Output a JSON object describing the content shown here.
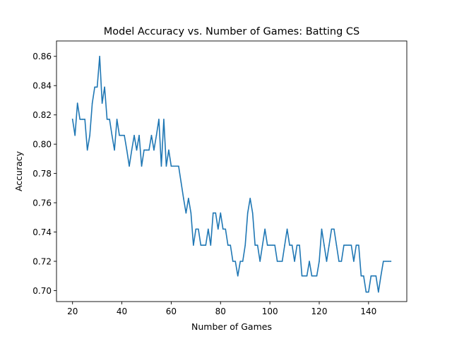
{
  "chart_data": {
    "type": "line",
    "title": "Model Accuracy vs. Number of Games: Batting CS",
    "xlabel": "Number of Games",
    "ylabel": "Accuracy",
    "xlim": [
      13.5,
      155.5
    ],
    "ylim": [
      0.6925,
      0.8705
    ],
    "xticks": [
      20,
      40,
      60,
      80,
      100,
      120,
      140
    ],
    "yticks": [
      0.7,
      0.72,
      0.74,
      0.76,
      0.78,
      0.8,
      0.82,
      0.84,
      0.86
    ],
    "xtick_labels": [
      "20",
      "40",
      "60",
      "80",
      "100",
      "120",
      "140"
    ],
    "ytick_labels": [
      "0.70",
      "0.72",
      "0.74",
      "0.76",
      "0.78",
      "0.80",
      "0.82",
      "0.84",
      "0.86"
    ],
    "grid": false,
    "line_color": "#1f77b4",
    "series": [
      {
        "x": [
          20,
          21,
          22,
          23,
          24,
          25,
          26,
          27,
          28,
          29,
          30,
          31,
          32,
          33,
          34,
          35,
          36,
          37,
          38,
          39,
          40,
          41,
          42,
          43,
          44,
          45,
          46,
          47,
          48,
          49,
          50,
          51,
          52,
          53,
          54,
          55,
          56,
          57,
          58,
          59,
          60,
          61,
          62,
          63,
          64,
          65,
          66,
          67,
          68,
          69,
          70,
          71,
          72,
          73,
          74,
          75,
          76,
          77,
          78,
          79,
          80,
          81,
          82,
          83,
          84,
          85,
          86,
          87,
          88,
          89,
          90,
          91,
          92,
          93,
          94,
          95,
          96,
          97,
          98,
          99,
          100,
          101,
          102,
          103,
          104,
          105,
          106,
          107,
          108,
          109,
          110,
          111,
          112,
          113,
          114,
          115,
          116,
          117,
          118,
          119,
          120,
          121,
          122,
          123,
          124,
          125,
          126,
          127,
          128,
          129,
          130,
          131,
          132,
          133,
          134,
          135,
          136,
          137,
          138,
          139,
          140,
          141,
          142,
          143,
          144,
          145,
          146,
          147,
          148,
          149
        ],
        "values": [
          0.817,
          0.806,
          0.828,
          0.817,
          0.817,
          0.817,
          0.796,
          0.806,
          0.828,
          0.839,
          0.839,
          0.86,
          0.828,
          0.839,
          0.817,
          0.817,
          0.806,
          0.796,
          0.817,
          0.806,
          0.806,
          0.806,
          0.796,
          0.785,
          0.796,
          0.806,
          0.796,
          0.806,
          0.785,
          0.796,
          0.796,
          0.796,
          0.806,
          0.796,
          0.806,
          0.817,
          0.785,
          0.817,
          0.785,
          0.796,
          0.785,
          0.785,
          0.785,
          0.785,
          0.774,
          0.763,
          0.753,
          0.763,
          0.753,
          0.731,
          0.742,
          0.742,
          0.731,
          0.731,
          0.731,
          0.742,
          0.731,
          0.753,
          0.753,
          0.742,
          0.753,
          0.742,
          0.742,
          0.731,
          0.731,
          0.72,
          0.72,
          0.71,
          0.72,
          0.72,
          0.731,
          0.753,
          0.763,
          0.753,
          0.731,
          0.731,
          0.72,
          0.731,
          0.742,
          0.731,
          0.731,
          0.731,
          0.731,
          0.72,
          0.72,
          0.72,
          0.731,
          0.742,
          0.731,
          0.731,
          0.72,
          0.731,
          0.731,
          0.71,
          0.71,
          0.71,
          0.72,
          0.71,
          0.71,
          0.71,
          0.72,
          0.742,
          0.731,
          0.72,
          0.731,
          0.742,
          0.742,
          0.731,
          0.72,
          0.72,
          0.731,
          0.731,
          0.731,
          0.731,
          0.72,
          0.731,
          0.731,
          0.71,
          0.71,
          0.699,
          0.699,
          0.71,
          0.71,
          0.71,
          0.699,
          0.71,
          0.72,
          0.72,
          0.72,
          0.72
        ]
      }
    ]
  }
}
